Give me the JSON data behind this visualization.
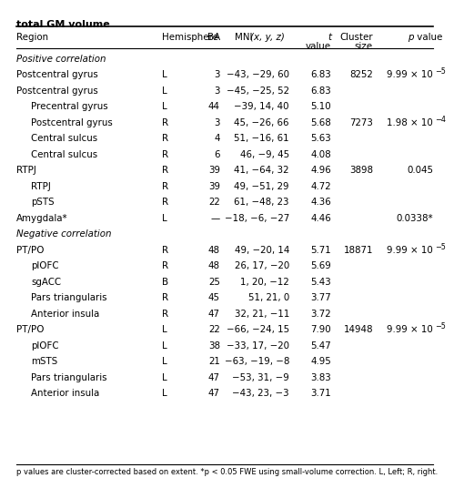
{
  "title": "total GM volume",
  "footer": "p values are cluster-corrected based on extent. *p < 0.05 FWE using small-volume correction. L, Left; R, right.",
  "rows": [
    {
      "region": "Positive correlation",
      "hemi": "",
      "ba": "",
      "mni": "",
      "t": "",
      "cluster": "",
      "p": "",
      "p_exp": null,
      "style": "section"
    },
    {
      "region": "Postcentral gyrus",
      "hemi": "L",
      "ba": "3",
      "mni": "−43, −29, 60",
      "t": "6.83",
      "cluster": "8252",
      "p": "9.99 × 10",
      "p_exp": "−5",
      "style": "main"
    },
    {
      "region": "Postcentral gyrus",
      "hemi": "L",
      "ba": "3",
      "mni": "−45, −25, 52",
      "t": "6.83",
      "cluster": "",
      "p": "",
      "p_exp": null,
      "style": "main"
    },
    {
      "region": "Precentral gyrus",
      "hemi": "L",
      "ba": "44",
      "mni": "−39, 14, 40",
      "t": "5.10",
      "cluster": "",
      "p": "",
      "p_exp": null,
      "style": "sub"
    },
    {
      "region": "Postcentral gyrus",
      "hemi": "R",
      "ba": "3",
      "mni": "45, −26, 66",
      "t": "5.68",
      "cluster": "7273",
      "p": "1.98 × 10",
      "p_exp": "−4",
      "style": "sub"
    },
    {
      "region": "Central sulcus",
      "hemi": "R",
      "ba": "4",
      "mni": "51, −16, 61",
      "t": "5.63",
      "cluster": "",
      "p": "",
      "p_exp": null,
      "style": "sub"
    },
    {
      "region": "Central sulcus",
      "hemi": "R",
      "ba": "6",
      "mni": "46, −9, 45",
      "t": "4.08",
      "cluster": "",
      "p": "",
      "p_exp": null,
      "style": "sub"
    },
    {
      "region": "RTPJ",
      "hemi": "R",
      "ba": "39",
      "mni": "41, −64, 32",
      "t": "4.96",
      "cluster": "3898",
      "p": "0.045",
      "p_exp": null,
      "style": "main"
    },
    {
      "region": "RTPJ",
      "hemi": "R",
      "ba": "39",
      "mni": "49, −51, 29",
      "t": "4.72",
      "cluster": "",
      "p": "",
      "p_exp": null,
      "style": "sub"
    },
    {
      "region": "pSTS",
      "hemi": "R",
      "ba": "22",
      "mni": "61, −48, 23",
      "t": "4.36",
      "cluster": "",
      "p": "",
      "p_exp": null,
      "style": "sub"
    },
    {
      "region": "Amygdala*",
      "hemi": "L",
      "ba": "—",
      "mni": "−18, −6, −27",
      "t": "4.46",
      "cluster": "",
      "p": "0.0338*",
      "p_exp": null,
      "style": "main"
    },
    {
      "region": "Negative correlation",
      "hemi": "",
      "ba": "",
      "mni": "",
      "t": "",
      "cluster": "",
      "p": "",
      "p_exp": null,
      "style": "section"
    },
    {
      "region": "PT/PO",
      "hemi": "R",
      "ba": "48",
      "mni": "49, −20, 14",
      "t": "5.71",
      "cluster": "18871",
      "p": "9.99 × 10",
      "p_exp": "−5",
      "style": "main"
    },
    {
      "region": "plOFC",
      "hemi": "R",
      "ba": "48",
      "mni": "26, 17, −20",
      "t": "5.69",
      "cluster": "",
      "p": "",
      "p_exp": null,
      "style": "sub"
    },
    {
      "region": "sgACC",
      "hemi": "B",
      "ba": "25",
      "mni": "1, 20, −12",
      "t": "5.43",
      "cluster": "",
      "p": "",
      "p_exp": null,
      "style": "sub"
    },
    {
      "region": "Pars triangularis",
      "hemi": "R",
      "ba": "45",
      "mni": "51, 21, 0",
      "t": "3.77",
      "cluster": "",
      "p": "",
      "p_exp": null,
      "style": "sub"
    },
    {
      "region": "Anterior insula",
      "hemi": "R",
      "ba": "47",
      "mni": "32, 21, −11",
      "t": "3.72",
      "cluster": "",
      "p": "",
      "p_exp": null,
      "style": "sub"
    },
    {
      "region": "PT/PO",
      "hemi": "L",
      "ba": "22",
      "mni": "−66, −24, 15",
      "t": "7.90",
      "cluster": "14948",
      "p": "9.99 × 10",
      "p_exp": "−5",
      "style": "main"
    },
    {
      "region": "plOFC",
      "hemi": "L",
      "ba": "38",
      "mni": "−33, 17, −20",
      "t": "5.47",
      "cluster": "",
      "p": "",
      "p_exp": null,
      "style": "sub"
    },
    {
      "region": "mSTS",
      "hemi": "L",
      "ba": "21",
      "mni": "−63, −19, −8",
      "t": "4.95",
      "cluster": "",
      "p": "",
      "p_exp": null,
      "style": "sub"
    },
    {
      "region": "Pars triangularis",
      "hemi": "L",
      "ba": "47",
      "mni": "−53, 31, −9",
      "t": "3.83",
      "cluster": "",
      "p": "",
      "p_exp": null,
      "style": "sub"
    },
    {
      "region": "Anterior insula",
      "hemi": "L",
      "ba": "47",
      "mni": "−43, 23, −3",
      "t": "3.71",
      "cluster": "",
      "p": "",
      "p_exp": null,
      "style": "sub"
    }
  ]
}
